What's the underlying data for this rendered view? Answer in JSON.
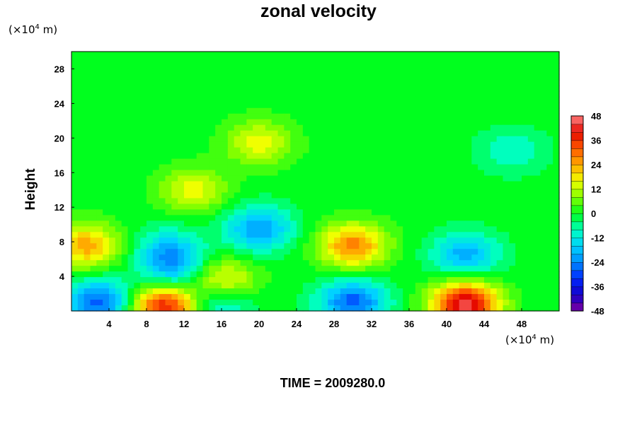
{
  "chart_data": {
    "type": "heatmap",
    "title": "zonal velocity",
    "ylabel": "Height",
    "xlabel": "",
    "x_unit": {
      "prefix": "(×10",
      "exp": "4",
      "suffix": " m)"
    },
    "y_unit": {
      "prefix": "(×10",
      "exp": "4",
      "suffix": " m)"
    },
    "xlim": [
      0,
      52
    ],
    "ylim": [
      0,
      30
    ],
    "x_ticks": [
      "4",
      "8",
      "12",
      "16",
      "20",
      "24",
      "28",
      "32",
      "36",
      "40",
      "44",
      "48"
    ],
    "x_tick_values": [
      4,
      8,
      12,
      16,
      20,
      24,
      28,
      32,
      36,
      40,
      44,
      48
    ],
    "y_ticks": [
      "4",
      "8",
      "12",
      "16",
      "20",
      "24",
      "28"
    ],
    "y_tick_values": [
      4,
      8,
      12,
      16,
      20,
      24,
      28
    ],
    "colorbar": {
      "min": -48,
      "max": 48,
      "step": 4,
      "ticks": [
        "48",
        "36",
        "24",
        "12",
        "0",
        "-12",
        "-24",
        "-36",
        "-48"
      ],
      "tick_values": [
        48,
        36,
        24,
        12,
        0,
        -12,
        -24,
        -36,
        -48
      ]
    },
    "features": [
      {
        "x": 1.5,
        "y": 7.5,
        "value": 24
      },
      {
        "x": 3,
        "y": 1.0,
        "value": -28
      },
      {
        "x": 10,
        "y": 0.5,
        "value": 40
      },
      {
        "x": 10.5,
        "y": 7,
        "value": -16
      },
      {
        "x": 11,
        "y": 4.5,
        "value": -16
      },
      {
        "x": 16,
        "y": 3.5,
        "value": 20
      },
      {
        "x": 15.5,
        "y": 0.8,
        "value": -16
      },
      {
        "x": 20,
        "y": 9.5,
        "value": -22
      },
      {
        "x": 30,
        "y": 7.5,
        "value": 28
      },
      {
        "x": 30,
        "y": 1.0,
        "value": -28
      },
      {
        "x": 42,
        "y": 6.5,
        "value": -20
      },
      {
        "x": 42,
        "y": 0.8,
        "value": 44
      },
      {
        "x": 13,
        "y": 14,
        "value": 16
      },
      {
        "x": 20,
        "y": 19.5,
        "value": 16
      },
      {
        "x": 47,
        "y": 18.5,
        "value": -10
      }
    ]
  },
  "time_label": "TIME = 2009280.0"
}
